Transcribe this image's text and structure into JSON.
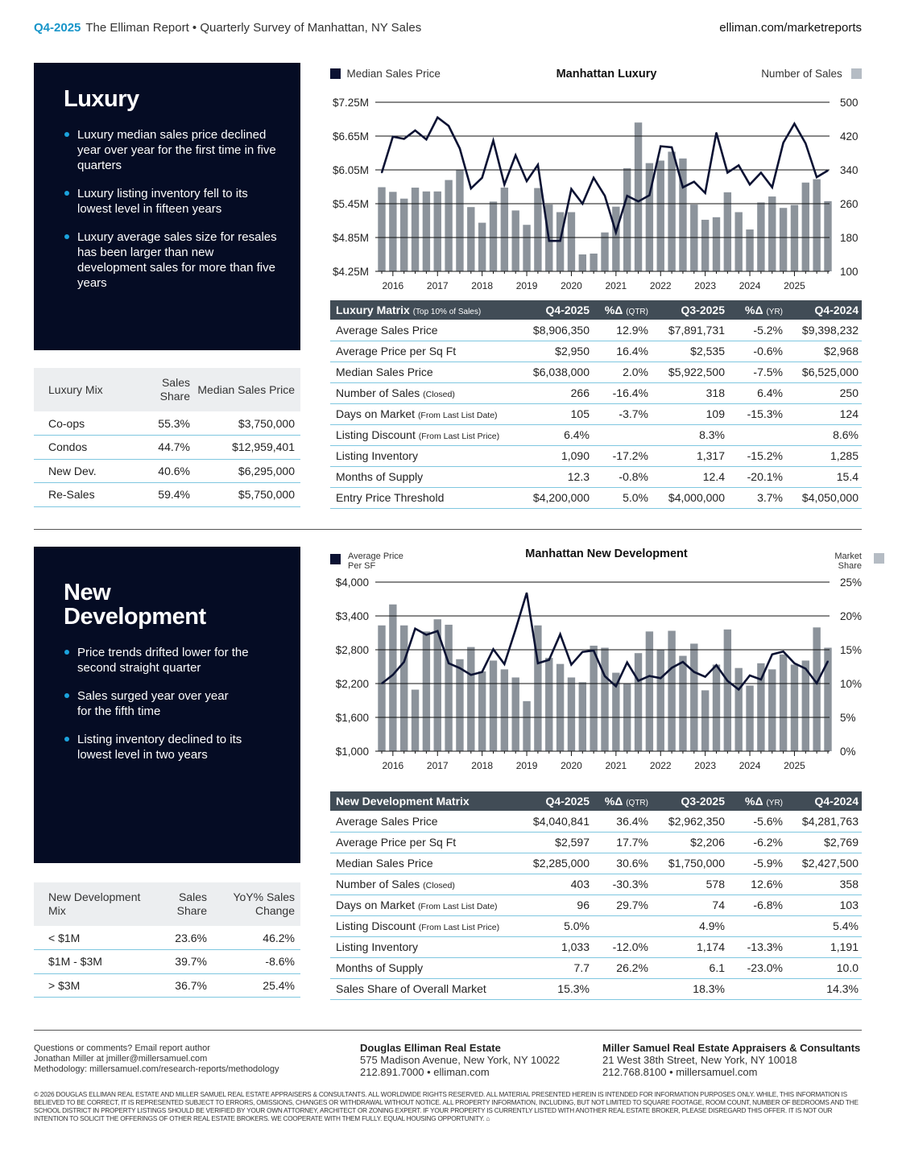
{
  "header": {
    "period": "Q4-2025",
    "title": "The Elliman Report • Quarterly Survey of Manhattan, NY Sales",
    "url": "elliman.com/marketreports"
  },
  "colors": {
    "accent": "#1795c9",
    "panel": "#050c24",
    "matrix_header": "#414c56",
    "bar": "#8c939b",
    "line": "#0b1233",
    "divider": "#7fc7e0"
  },
  "luxury": {
    "title": "Luxury",
    "bullets": [
      "Luxury median sales price declined year over year for the first time in five quarters",
      "Luxury listing inventory fell to its lowest level in fifteen years",
      "Luxury average sales size for resales has been larger than new development sales for more than five years"
    ],
    "mix": {
      "headers": [
        "Luxury Mix",
        "Sales Share",
        "Median Sales Price"
      ],
      "rows": [
        [
          "Co-ops",
          "55.3%",
          "$3,750,000"
        ],
        [
          "Condos",
          "44.7%",
          "$12,959,401"
        ],
        [
          "New Dev.",
          "40.6%",
          "$6,295,000"
        ],
        [
          "Re-Sales",
          "59.4%",
          "$5,750,000"
        ]
      ]
    },
    "chart_legend_left": "Median Sales Price",
    "chart_title": "Manhattan Luxury",
    "chart_legend_right": "Number of Sales",
    "matrix": {
      "title": "Luxury Matrix",
      "title_note": "(Top 10% of Sales)",
      "columns": [
        "Q4-2025",
        "%Δ",
        "(QTR)",
        "Q3-2025",
        "%Δ",
        "(YR)",
        "Q4-2024"
      ],
      "rows": [
        {
          "label": "Average Sales Price",
          "note": "",
          "v": [
            "$8,906,350",
            "12.9%",
            "$7,891,731",
            "-5.2%",
            "$9,398,232"
          ]
        },
        {
          "label": "Average Price per Sq Ft",
          "note": "",
          "v": [
            "$2,950",
            "16.4%",
            "$2,535",
            "-0.6%",
            "$2,968"
          ]
        },
        {
          "label": "Median Sales Price",
          "note": "",
          "v": [
            "$6,038,000",
            "2.0%",
            "$5,922,500",
            "-7.5%",
            "$6,525,000"
          ]
        },
        {
          "label": "Number of Sales",
          "note": "(Closed)",
          "v": [
            "266",
            "-16.4%",
            "318",
            "6.4%",
            "250"
          ]
        },
        {
          "label": "Days on Market",
          "note": "(From Last List Date)",
          "v": [
            "105",
            "-3.7%",
            "109",
            "-15.3%",
            "124"
          ]
        },
        {
          "label": "Listing Discount",
          "note": "(From Last List Price)",
          "v": [
            "6.4%",
            "",
            "8.3%",
            "",
            "8.6%"
          ]
        },
        {
          "label": "Listing Inventory",
          "note": "",
          "v": [
            "1,090",
            "-17.2%",
            "1,317",
            "-15.2%",
            "1,285"
          ]
        },
        {
          "label": "Months of Supply",
          "note": "",
          "v": [
            "12.3",
            "-0.8%",
            "12.4",
            "-20.1%",
            "15.4"
          ]
        },
        {
          "label": "Entry Price Threshold",
          "note": "",
          "v": [
            "$4,200,000",
            "5.0%",
            "$4,000,000",
            "3.7%",
            "$4,050,000"
          ]
        }
      ]
    }
  },
  "newdev": {
    "title_line1": "New",
    "title_line2": "Development",
    "bullets": [
      "Price trends drifted lower for the second straight quarter",
      "Sales surged year over year for the fifth time",
      "Listing inventory declined to its lowest level in two years"
    ],
    "mix": {
      "headers": [
        "New Development Mix",
        "Sales Share",
        "YoY% Sales Change"
      ],
      "rows": [
        [
          "< $1M",
          "23.6%",
          "46.2%"
        ],
        [
          "$1M - $3M",
          "39.7%",
          "-8.6%"
        ],
        [
          "> $3M",
          "36.7%",
          "25.4%"
        ]
      ]
    },
    "chart_legend_left": "Average Price Per SF",
    "chart_title": "Manhattan New Development",
    "chart_legend_right": "Market Share",
    "matrix": {
      "title": "New Development Matrix",
      "columns": [
        "Q4-2025",
        "%Δ",
        "(QTR)",
        "Q3-2025",
        "%Δ",
        "(YR)",
        "Q4-2024"
      ],
      "rows": [
        {
          "label": "Average Sales Price",
          "note": "",
          "v": [
            "$4,040,841",
            "36.4%",
            "$2,962,350",
            "-5.6%",
            "$4,281,763"
          ]
        },
        {
          "label": "Average Price per Sq Ft",
          "note": "",
          "v": [
            "$2,597",
            "17.7%",
            "$2,206",
            "-6.2%",
            "$2,769"
          ]
        },
        {
          "label": "Median Sales Price",
          "note": "",
          "v": [
            "$2,285,000",
            "30.6%",
            "$1,750,000",
            "-5.9%",
            "$2,427,500"
          ]
        },
        {
          "label": "Number of Sales",
          "note": "(Closed)",
          "v": [
            "403",
            "-30.3%",
            "578",
            "12.6%",
            "358"
          ]
        },
        {
          "label": "Days on Market",
          "note": "(From Last List Date)",
          "v": [
            "96",
            "29.7%",
            "74",
            "-6.8%",
            "103"
          ]
        },
        {
          "label": "Listing Discount",
          "note": "(From Last List Price)",
          "v": [
            "5.0%",
            "",
            "4.9%",
            "",
            "5.4%"
          ]
        },
        {
          "label": "Listing Inventory",
          "note": "",
          "v": [
            "1,033",
            "-12.0%",
            "1,174",
            "-13.3%",
            "1,191"
          ]
        },
        {
          "label": "Months of Supply",
          "note": "",
          "v": [
            "7.7",
            "26.2%",
            "6.1",
            "-23.0%",
            "10.0"
          ]
        },
        {
          "label": "Sales Share of Overall Market",
          "note": "",
          "v": [
            "15.3%",
            "",
            "18.3%",
            "",
            "14.3%"
          ]
        }
      ]
    }
  },
  "chart_data": [
    {
      "type": "bar+line",
      "title": "Manhattan Luxury",
      "grid": true,
      "legend": "top",
      "x_tick_labels": [
        "2016",
        "2017",
        "2018",
        "2019",
        "2020",
        "2021",
        "2022",
        "2023",
        "2024",
        "2025"
      ],
      "quarters": "Q4-2015 to Q4-2025",
      "left_axis": {
        "ylim": [
          4.25,
          7.25
        ],
        "tick_labels": [
          "$7.25M",
          "$6.65M",
          "$6.05M",
          "$5.45M",
          "$4.85M",
          "$4.25M"
        ]
      },
      "right_axis": {
        "ylim": [
          100,
          500
        ],
        "tick_labels": [
          "500",
          "420",
          "340",
          "260",
          "180",
          "100"
        ]
      },
      "series": [
        {
          "name": "Median Sales Price",
          "type": "line",
          "axis": "left",
          "unit": "$M",
          "values": [
            6.0,
            6.64,
            6.6,
            6.75,
            6.59,
            6.98,
            6.83,
            6.43,
            5.72,
            5.91,
            6.57,
            5.79,
            6.31,
            5.85,
            6.14,
            4.79,
            4.79,
            5.71,
            5.45,
            5.91,
            5.59,
            4.94,
            5.59,
            5.49,
            5.6,
            6.47,
            6.45,
            5.74,
            5.84,
            5.64,
            6.71,
            6.0,
            6.13,
            5.79,
            6.0,
            5.74,
            6.53,
            6.87,
            6.52,
            5.92,
            6.04
          ]
        },
        {
          "name": "Number of Sales",
          "type": "bar",
          "axis": "right",
          "values": [
            299,
            288,
            272,
            298,
            289,
            289,
            316,
            340,
            252,
            215,
            265,
            298,
            244,
            210,
            297,
            258,
            240,
            240,
            140,
            142,
            192,
            253,
            344,
            452,
            356,
            362,
            383,
            367,
            258,
            222,
            228,
            287,
            240,
            199,
            263,
            277,
            250,
            257,
            310,
            318,
            266
          ]
        }
      ]
    },
    {
      "type": "bar+line",
      "title": "Manhattan New Development",
      "grid": true,
      "legend": "top",
      "x_tick_labels": [
        "2016",
        "2017",
        "2018",
        "2019",
        "2020",
        "2021",
        "2022",
        "2023",
        "2024",
        "2025"
      ],
      "quarters": "Q4-2015 to Q4-2025",
      "left_axis": {
        "ylim": [
          1000,
          4000
        ],
        "tick_labels": [
          "$4,000",
          "$3,400",
          "$2,800",
          "$2,200",
          "$1,600",
          "$1,000"
        ]
      },
      "right_axis": {
        "ylim": [
          0,
          25
        ],
        "tick_labels": [
          "25%",
          "20%",
          "15%",
          "10%",
          "5%",
          "0%"
        ]
      },
      "series": [
        {
          "name": "Average Price Per SF",
          "type": "line",
          "axis": "left",
          "values": [
            2200,
            2354,
            2584,
            3174,
            3064,
            3131,
            2560,
            2474,
            2354,
            2406,
            2810,
            2546,
            3160,
            3808,
            2560,
            2622,
            3074,
            2536,
            2762,
            2786,
            2330,
            2152,
            2574,
            2248,
            2334,
            2296,
            2478,
            2584,
            2406,
            2320,
            2526,
            2248,
            2094,
            2344,
            2272,
            2718,
            2769,
            2560,
            2464,
            2206,
            2597
          ]
        },
        {
          "name": "Market Share",
          "type": "bar",
          "axis": "right",
          "unit": "%",
          "values": [
            18.6,
            21.7,
            18.6,
            9.1,
            17.7,
            19.5,
            18.7,
            13.6,
            15.4,
            11.8,
            13.4,
            12.1,
            10.9,
            7.4,
            18.6,
            13.8,
            12.9,
            10.9,
            10.2,
            15.6,
            15.3,
            11.6,
            10.0,
            14.5,
            17.7,
            15.0,
            17.8,
            14.1,
            15.9,
            9.0,
            12.8,
            18.0,
            12.3,
            9.7,
            13.0,
            12.1,
            14.3,
            12.8,
            13.4,
            18.3,
            15.3
          ]
        }
      ]
    }
  ],
  "footer": {
    "contact": [
      "Questions or comments? Email report author",
      "Jonathan Miller at jmiller@millersamuel.com",
      "Methodology: millersamuel.com/research-reports/methodology"
    ],
    "de_name": "Douglas Elliman Real Estate",
    "de_address": "575 Madison Avenue, New York, NY 10022",
    "de_contact": "212.891.7000 • elliman.com",
    "ms_name": "Miller Samuel Real Estate Appraisers & Consultants",
    "ms_address": "21 West 38th Street, New York, NY 10018",
    "ms_contact": "212.768.8100 • millersamuel.com",
    "fine_print": "© 2026 Douglas Elliman Real Estate and Miller Samuel Real Estate Appraisers & Consultants. All worldwide rights reserved. All material presented herein is intended for information purposes only. While, this information is believed to be correct, it is represented subject to errors, omissions, changes or withdrawal without notice. All property information, including, but not limited to square footage, room count, number of bedrooms and the school district in property listings should be verified by your own attorney, architect or zoning expert. If your property is currently listed with another real estate broker, please disregard this offer. It is not our intention to solicit the offerings of other real estate brokers. We cooperate with them fully. Equal Housing Opportunity."
  }
}
